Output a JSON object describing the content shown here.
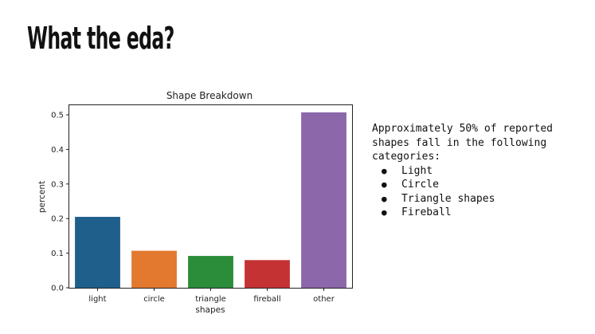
{
  "slide": {
    "title": "What the eda?"
  },
  "notes": {
    "intro": "Approximately 50% of reported shapes fall in the following categories:",
    "bullets": [
      "Light",
      "Circle",
      "Triangle shapes",
      "Fireball"
    ]
  },
  "chart_data": {
    "type": "bar",
    "title": "Shape Breakdown",
    "xlabel": "shapes",
    "ylabel": "percent",
    "categories": [
      "light",
      "circle",
      "triangle",
      "fireball",
      "other"
    ],
    "values": [
      0.205,
      0.107,
      0.092,
      0.08,
      0.507
    ],
    "colors": [
      "#1f5f8b",
      "#e2792f",
      "#2b8c3a",
      "#c43234",
      "#8c67aa"
    ],
    "ylim": [
      0,
      0.53
    ],
    "yticks": [
      "0.0",
      "0.1",
      "0.2",
      "0.3",
      "0.4",
      "0.5"
    ],
    "grid": false,
    "legend": "none"
  }
}
